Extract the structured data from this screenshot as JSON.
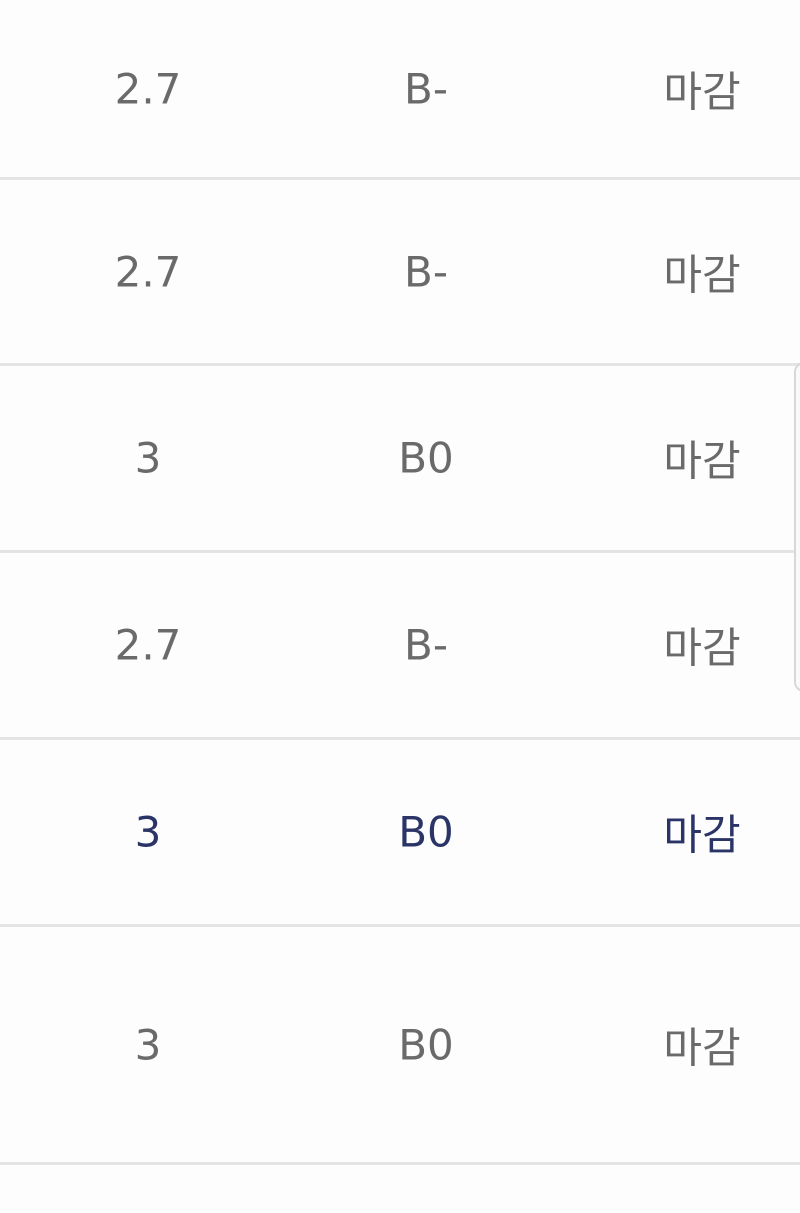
{
  "table": {
    "rows": [
      [
        "2.7",
        "B-",
        "마감"
      ],
      [
        "2.7",
        "B-",
        "마감"
      ],
      [
        "3",
        "B0",
        "마감"
      ],
      [
        "2.7",
        "B-",
        "마감"
      ],
      [
        "3",
        "B0",
        "마감"
      ],
      [
        "3",
        "B0",
        "마감"
      ]
    ]
  }
}
